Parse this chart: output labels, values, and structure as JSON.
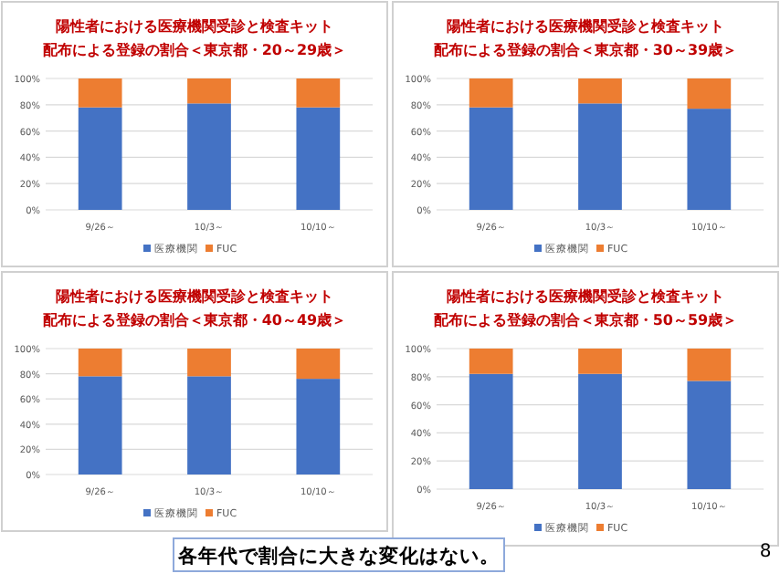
{
  "chart_data": [
    {
      "type": "bar",
      "stacked": true,
      "title": "陽性者における医療機関受診と検査キット",
      "subtitle": "配布による登録の割合＜東京都・20～29歳＞",
      "categories": [
        "9/26～",
        "10/3～",
        "10/10～"
      ],
      "series": [
        {
          "name": "医療機関",
          "color": "#4472c4",
          "values": [
            78,
            81,
            78
          ]
        },
        {
          "name": "FUC",
          "color": "#ed7d31",
          "values": [
            22,
            19,
            22
          ]
        }
      ],
      "ylim": [
        0,
        100
      ],
      "yticks": [
        {
          "value": 0,
          "label": "0%"
        },
        {
          "value": 20,
          "label": "20%"
        },
        {
          "value": 40,
          "label": "40%"
        },
        {
          "value": 60,
          "label": "60%"
        },
        {
          "value": 80,
          "label": "80%"
        },
        {
          "value": 100,
          "label": "100%"
        }
      ],
      "grid": "y",
      "legend": "bottom"
    },
    {
      "type": "bar",
      "stacked": true,
      "title": "陽性者における医療機関受診と検査キット",
      "subtitle": "配布による登録の割合＜東京都・30～39歳＞",
      "categories": [
        "9/26～",
        "10/3～",
        "10/10～"
      ],
      "series": [
        {
          "name": "医療機関",
          "color": "#4472c4",
          "values": [
            78,
            81,
            77
          ]
        },
        {
          "name": "FUC",
          "color": "#ed7d31",
          "values": [
            22,
            19,
            23
          ]
        }
      ],
      "ylim": [
        0,
        100
      ],
      "yticks": [
        {
          "value": 0,
          "label": "0%"
        },
        {
          "value": 20,
          "label": "20%"
        },
        {
          "value": 40,
          "label": "40%"
        },
        {
          "value": 60,
          "label": "60%"
        },
        {
          "value": 80,
          "label": "80%"
        },
        {
          "value": 100,
          "label": "100%"
        }
      ],
      "grid": "y",
      "legend": "bottom"
    },
    {
      "type": "bar",
      "stacked": true,
      "title": "陽性者における医療機関受診と検査キット",
      "subtitle": "配布による登録の割合＜東京都・40～49歳＞",
      "categories": [
        "9/26～",
        "10/3～",
        "10/10～"
      ],
      "series": [
        {
          "name": "医療機関",
          "color": "#4472c4",
          "values": [
            78,
            78,
            76
          ]
        },
        {
          "name": "FUC",
          "color": "#ed7d31",
          "values": [
            22,
            22,
            24
          ]
        }
      ],
      "ylim": [
        0,
        100
      ],
      "yticks": [
        {
          "value": 0,
          "label": "0%"
        },
        {
          "value": 20,
          "label": "20%"
        },
        {
          "value": 40,
          "label": "40%"
        },
        {
          "value": 60,
          "label": "60%"
        },
        {
          "value": 80,
          "label": "80%"
        },
        {
          "value": 100,
          "label": "100%"
        }
      ],
      "grid": "y",
      "legend": "bottom"
    },
    {
      "type": "bar",
      "stacked": true,
      "title": "陽性者における医療機関受診と検査キット",
      "subtitle": "配布による登録の割合＜東京都・50～59歳＞",
      "categories": [
        "9/26～",
        "10/3～",
        "10/10～"
      ],
      "series": [
        {
          "name": "医療機関",
          "color": "#4472c4",
          "values": [
            82,
            82,
            77
          ]
        },
        {
          "name": "FUC",
          "color": "#ed7d31",
          "values": [
            18,
            18,
            23
          ]
        }
      ],
      "ylim": [
        0,
        100
      ],
      "yticks": [
        {
          "value": 0,
          "label": "0%"
        },
        {
          "value": 20,
          "label": "20%"
        },
        {
          "value": 40,
          "label": "40%"
        },
        {
          "value": 60,
          "label": "60%"
        },
        {
          "value": 80,
          "label": "80%"
        },
        {
          "value": 100,
          "label": "100%"
        }
      ],
      "grid": "y",
      "legend": "bottom",
      "annotations": [
        "各年代で割合に大きな変化はない。",
        "8"
      ]
    }
  ]
}
